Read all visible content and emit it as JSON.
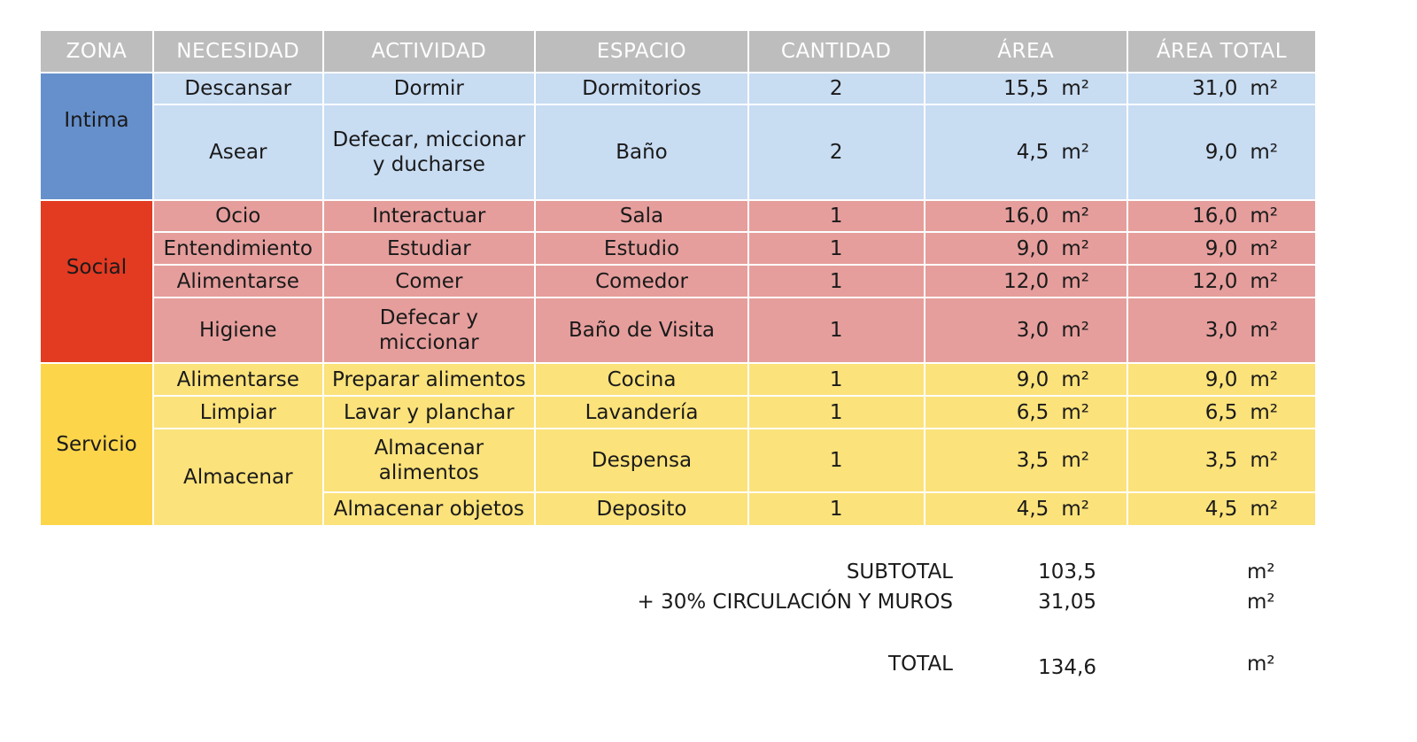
{
  "headers": [
    "ZONA",
    "NECESIDAD",
    "ACTIVIDAD",
    "ESPACIO",
    "CANTIDAD",
    "ÁREA",
    "ÁREA TOTAL"
  ],
  "unit": "m²",
  "zones": {
    "intima": {
      "name": "Intima",
      "color": "#6690cc",
      "row_color": "#c8dcf2"
    },
    "social": {
      "name": "Social",
      "color": "#e33a22",
      "row_color": "#e59e9c"
    },
    "servicio": {
      "name": "Servicio",
      "color": "#fcd54b",
      "row_color": "#fbe27a"
    }
  },
  "rows": [
    {
      "necesidad": "Descansar",
      "actividad": "Dormir",
      "espacio": "Dormitorios",
      "cantidad": "2",
      "area": "15,5",
      "area_total": "31,0"
    },
    {
      "necesidad": "Asear",
      "actividad": "Defecar, miccionar y ducharse",
      "espacio": "Baño",
      "cantidad": "2",
      "area": "4,5",
      "area_total": "9,0"
    },
    {
      "necesidad": "Ocio",
      "actividad": "Interactuar",
      "espacio": "Sala",
      "cantidad": "1",
      "area": "16,0",
      "area_total": "16,0"
    },
    {
      "necesidad": "Entendimiento",
      "actividad": "Estudiar",
      "espacio": "Estudio",
      "cantidad": "1",
      "area": "9,0",
      "area_total": "9,0"
    },
    {
      "necesidad": "Alimentarse",
      "actividad": "Comer",
      "espacio": "Comedor",
      "cantidad": "1",
      "area": "12,0",
      "area_total": "12,0"
    },
    {
      "necesidad": "Higiene",
      "actividad": "Defecar y miccionar",
      "espacio": "Baño de Visita",
      "cantidad": "1",
      "area": "3,0",
      "area_total": "3,0"
    },
    {
      "necesidad": "Alimentarse",
      "actividad": "Preparar alimentos",
      "espacio": "Cocina",
      "cantidad": "1",
      "area": "9,0",
      "area_total": "9,0"
    },
    {
      "necesidad": "Limpiar",
      "actividad": "Lavar y planchar",
      "espacio": "Lavandería",
      "cantidad": "1",
      "area": "6,5",
      "area_total": "6,5"
    },
    {
      "necesidad": "Almacenar",
      "actividad": "Almacenar alimentos",
      "espacio": "Despensa",
      "cantidad": "1",
      "area": "3,5",
      "area_total": "3,5"
    },
    {
      "necesidad": "",
      "actividad": "Almacenar objetos",
      "espacio": "Deposito",
      "cantidad": "1",
      "area": "4,5",
      "area_total": "4,5"
    }
  ],
  "summary": {
    "subtotal_label": "SUBTOTAL",
    "subtotal_value": "103,5",
    "circulation_label": "+  30% CIRCULACIÓN Y  MUROS",
    "circulation_value": "31,05",
    "total_label": "TOTAL",
    "total_value": "134,6"
  }
}
